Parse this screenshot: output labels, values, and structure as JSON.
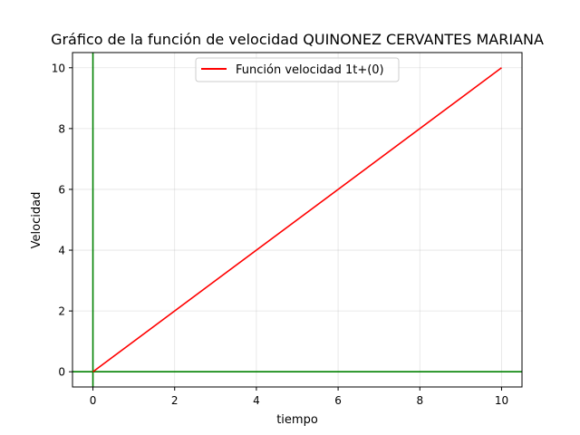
{
  "chart_data": {
    "type": "line",
    "title": "Gráfico de la función de velocidad QUINONEZ CERVANTES MARIANA",
    "xlabel": "tiempo",
    "ylabel": "Velocidad",
    "xlim": [
      -0.5,
      10.5
    ],
    "ylim": [
      -0.5,
      10.5
    ],
    "xticks": [
      0,
      2,
      4,
      6,
      8,
      10
    ],
    "yticks": [
      0,
      2,
      4,
      6,
      8,
      10
    ],
    "xtick_labels": [
      "0",
      "2",
      "4",
      "6",
      "8",
      "10"
    ],
    "ytick_labels": [
      "0",
      "2",
      "4",
      "6",
      "8",
      "10"
    ],
    "grid": true,
    "legend_position": "top-center",
    "reference_lines": {
      "x_zero_axis": 0,
      "y_zero_axis": 0,
      "color": "#008000"
    },
    "series": [
      {
        "name": "Función velocidad 1t+(0)",
        "color": "#ff0000",
        "x": [
          0,
          10
        ],
        "y": [
          0,
          10
        ]
      }
    ]
  }
}
